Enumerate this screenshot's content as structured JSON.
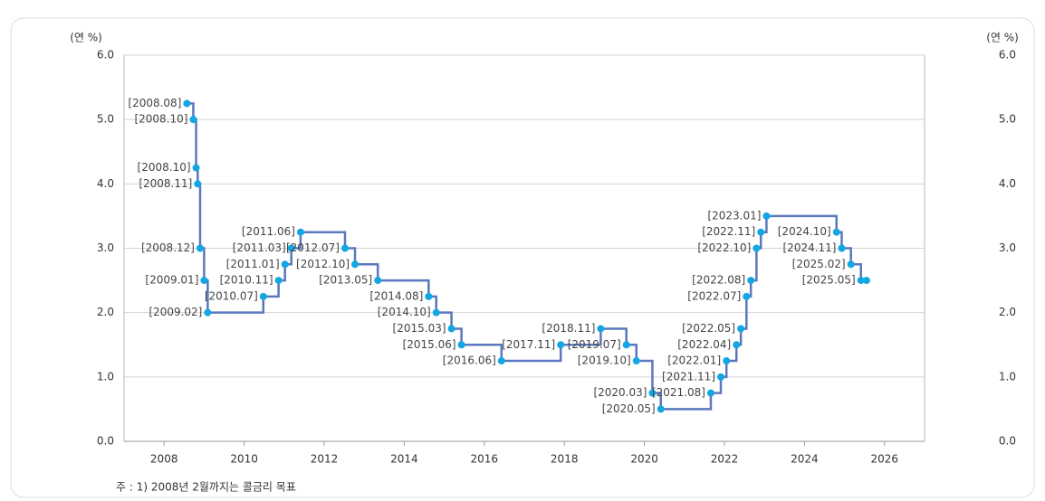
{
  "chart_data": {
    "type": "step-line",
    "y_unit_left": "(연 %)",
    "y_unit_right": "(연 %)",
    "note": "주 : 1) 2008년 2월까지는 콜금리 목표",
    "xlim": [
      2007,
      2027
    ],
    "xticks": [
      2008,
      2010,
      2012,
      2014,
      2016,
      2018,
      2020,
      2022,
      2024,
      2026
    ],
    "ylim": [
      0,
      6
    ],
    "yticks": [
      {
        "value": 0,
        "label": "0.0"
      },
      {
        "value": 1,
        "label": "1.0"
      },
      {
        "value": 2,
        "label": "2.0"
      },
      {
        "value": 3,
        "label": "3.0"
      },
      {
        "value": 4,
        "label": "4.0"
      },
      {
        "value": 5,
        "label": "5.0"
      },
      {
        "value": 6,
        "label": "6.0"
      }
    ],
    "y2lim": [
      0,
      6
    ],
    "y2ticks": [
      {
        "value": 0,
        "label": "0.0"
      },
      {
        "value": 1,
        "label": "1.0"
      },
      {
        "value": 2,
        "label": "2.0"
      },
      {
        "value": 3,
        "label": "3.0"
      },
      {
        "value": 4,
        "label": "4.0"
      },
      {
        "value": 5,
        "label": "5.0"
      },
      {
        "value": 6,
        "label": "6.0"
      }
    ],
    "grid": true,
    "line_color": "#5a78bd",
    "marker_color": "#12a6e3",
    "x": [
      2008.57,
      2008.73,
      2008.8,
      2008.84,
      2008.9,
      2009.0,
      2009.09,
      2010.48,
      2010.86,
      2011.02,
      2011.18,
      2011.41,
      2012.52,
      2012.77,
      2013.34,
      2014.61,
      2014.8,
      2015.18,
      2015.43,
      2016.43,
      2017.91,
      2018.91,
      2019.55,
      2019.8,
      2020.2,
      2020.41,
      2021.66,
      2021.91,
      2022.05,
      2022.3,
      2022.41,
      2022.55,
      2022.66,
      2022.8,
      2022.91,
      2023.05,
      2024.8,
      2024.93,
      2025.16,
      2025.41,
      2025.55
    ],
    "values": [
      5.25,
      5.0,
      4.25,
      4.0,
      3.0,
      2.5,
      2.0,
      2.25,
      2.5,
      2.75,
      3.0,
      3.25,
      3.0,
      2.75,
      2.5,
      2.25,
      2.0,
      1.75,
      1.5,
      1.25,
      1.5,
      1.75,
      1.5,
      1.25,
      0.75,
      0.5,
      0.75,
      1.0,
      1.25,
      1.5,
      1.75,
      2.25,
      2.5,
      3.0,
      3.25,
      3.5,
      3.25,
      3.0,
      2.75,
      2.5,
      2.5
    ],
    "point_labels": [
      "[2008.08]",
      "[2008.10]",
      "[2008.10]",
      "[2008.11]",
      "[2008.12]",
      "[2009.01]",
      "[2009.02]",
      "[2010.07]",
      "[2010.11]",
      "[2011.01]",
      "[2011.03]",
      "[2011.06]",
      "[2012.07]",
      "[2012.10]",
      "[2013.05]",
      "[2014.08]",
      "[2014.10]",
      "[2015.03]",
      "[2015.06]",
      "[2016.06]",
      "[2017.11]",
      "[2018.11]",
      "[2019.07]",
      "[2019.10]",
      "[2020.03]",
      "[2020.05]",
      "[2021.08]",
      "[2021.11]",
      "[2022.01]",
      "[2022.04]",
      "[2022.05]",
      "[2022.07]",
      "[2022.08]",
      "[2022.10]",
      "[2022.11]",
      "[2023.01]",
      "[2024.10]",
      "[2024.11]",
      "[2025.02]",
      "[2025.05]",
      null
    ]
  }
}
